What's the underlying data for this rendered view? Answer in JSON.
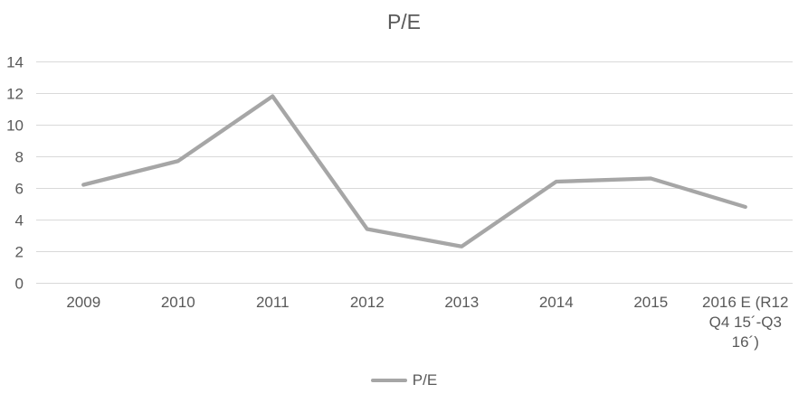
{
  "chart_data": {
    "type": "line",
    "title": "P/E",
    "categories": [
      "2009",
      "2010",
      "2011",
      "2012",
      "2013",
      "2014",
      "2015",
      "2016 E (R12\nQ4 15´-Q3\n16´)"
    ],
    "series": [
      {
        "name": "P/E",
        "values": [
          6.2,
          7.7,
          11.8,
          3.4,
          2.3,
          6.4,
          6.6,
          4.8
        ]
      }
    ],
    "xlabel": "",
    "ylabel": "",
    "ylim": [
      0,
      14
    ],
    "yticks": [
      0,
      2,
      4,
      6,
      8,
      10,
      12,
      14
    ],
    "grid": true,
    "legend_position": "bottom",
    "colors": {
      "line": "#A6A6A6",
      "gridline": "#D9D9D9",
      "text": "#595959",
      "background": "#FFFFFF"
    }
  }
}
